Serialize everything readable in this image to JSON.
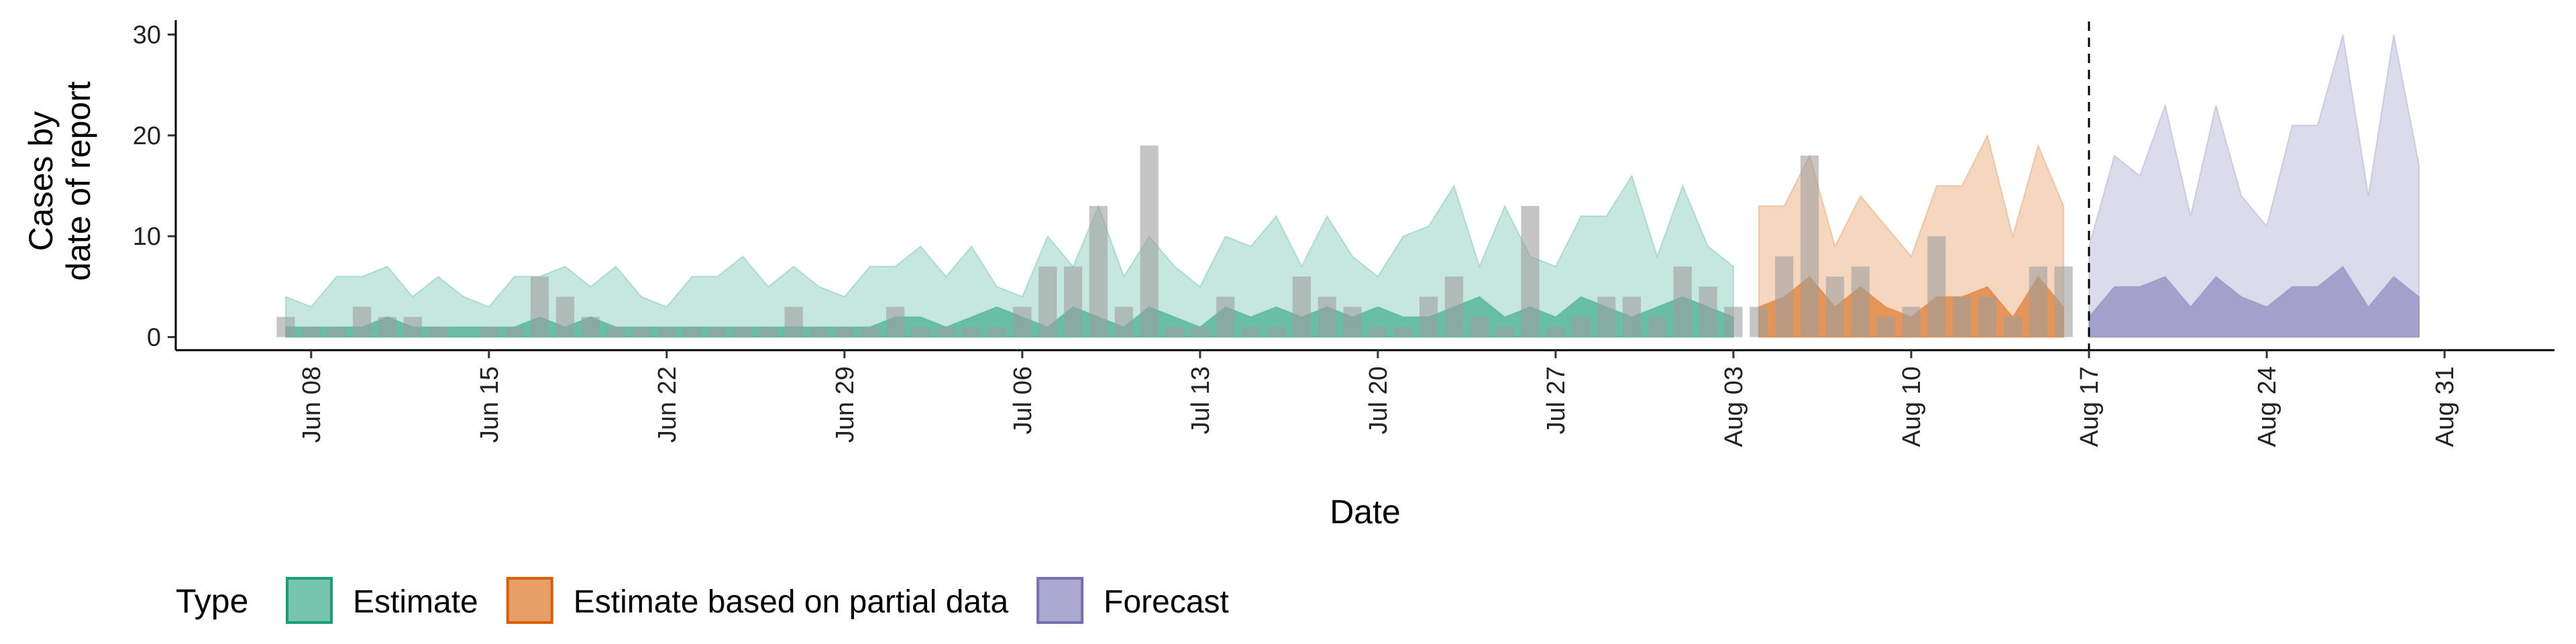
{
  "chart_data": {
    "type": "ribbon",
    "x_label": "Date",
    "y_label": [
      "Cases by",
      "date of report"
    ],
    "x": [
      "Jun 07",
      "Jun 08",
      "Jun 09",
      "Jun 10",
      "Jun 11",
      "Jun 12",
      "Jun 13",
      "Jun 14",
      "Jun 15",
      "Jun 16",
      "Jun 17",
      "Jun 18",
      "Jun 19",
      "Jun 20",
      "Jun 21",
      "Jun 22",
      "Jun 23",
      "Jun 24",
      "Jun 25",
      "Jun 26",
      "Jun 27",
      "Jun 28",
      "Jun 29",
      "Jun 30",
      "Jul 01",
      "Jul 02",
      "Jul 03",
      "Jul 04",
      "Jul 05",
      "Jul 06",
      "Jul 07",
      "Jul 08",
      "Jul 09",
      "Jul 10",
      "Jul 11",
      "Jul 12",
      "Jul 13",
      "Jul 14",
      "Jul 15",
      "Jul 16",
      "Jul 17",
      "Jul 18",
      "Jul 19",
      "Jul 20",
      "Jul 21",
      "Jul 22",
      "Jul 23",
      "Jul 24",
      "Jul 25",
      "Jul 26",
      "Jul 27",
      "Jul 28",
      "Jul 29",
      "Jul 30",
      "Jul 31",
      "Aug 01",
      "Aug 02",
      "Aug 03",
      "Aug 04",
      "Aug 05",
      "Aug 06",
      "Aug 07",
      "Aug 08",
      "Aug 09",
      "Aug 10",
      "Aug 11",
      "Aug 12",
      "Aug 13",
      "Aug 14",
      "Aug 15",
      "Aug 16",
      "Aug 17",
      "Aug 18",
      "Aug 19",
      "Aug 20",
      "Aug 21",
      "Aug 22",
      "Aug 23",
      "Aug 24",
      "Aug 25",
      "Aug 26",
      "Aug 27",
      "Aug 28",
      "Aug 29",
      "Aug 30",
      "Aug 31"
    ],
    "xticks": [
      "Jun 08",
      "Jun 15",
      "Jun 22",
      "Jun 29",
      "Jul 06",
      "Jul 13",
      "Jul 20",
      "Jul 27",
      "Aug 03",
      "Aug 10",
      "Aug 17",
      "Aug 24",
      "Aug 31"
    ],
    "ylim": [
      -1.3,
      31.3
    ],
    "yticks": [
      0,
      10,
      20,
      30
    ],
    "vline": "Aug 17",
    "legend_title": "Type",
    "bars": {
      "color": "#9e9e9e",
      "x": [
        "Jun 07",
        "Jun 08",
        "Jun 09",
        "Jun 10",
        "Jun 11",
        "Jun 12",
        "Jun 13",
        "Jun 14",
        "Jun 15",
        "Jun 16",
        "Jun 17",
        "Jun 18",
        "Jun 19",
        "Jun 20",
        "Jun 21",
        "Jun 22",
        "Jun 23",
        "Jun 24",
        "Jun 25",
        "Jun 26",
        "Jun 27",
        "Jun 28",
        "Jun 29",
        "Jun 30",
        "Jul 01",
        "Jul 02",
        "Jul 03",
        "Jul 04",
        "Jul 05",
        "Jul 06",
        "Jul 07",
        "Jul 08",
        "Jul 09",
        "Jul 10",
        "Jul 11",
        "Jul 12",
        "Jul 13",
        "Jul 14",
        "Jul 15",
        "Jul 16",
        "Jul 17",
        "Jul 18",
        "Jul 19",
        "Jul 20",
        "Jul 21",
        "Jul 22",
        "Jul 23",
        "Jul 24",
        "Jul 25",
        "Jul 26",
        "Jul 27",
        "Jul 28",
        "Jul 29",
        "Jul 30",
        "Jul 31",
        "Aug 01",
        "Aug 02",
        "Aug 03",
        "Aug 04",
        "Aug 05",
        "Aug 06",
        "Aug 07",
        "Aug 08",
        "Aug 09",
        "Aug 10",
        "Aug 11",
        "Aug 12",
        "Aug 13",
        "Aug 14",
        "Aug 15",
        "Aug 16"
      ],
      "values": [
        2,
        1,
        1,
        3,
        2,
        2,
        1,
        0,
        1,
        1,
        6,
        4,
        2,
        1,
        1,
        1,
        1,
        1,
        1,
        1,
        3,
        1,
        1,
        1,
        3,
        1,
        1,
        1,
        1,
        3,
        7,
        7,
        13,
        3,
        19,
        1,
        1,
        4,
        1,
        1,
        6,
        4,
        3,
        1,
        1,
        4,
        6,
        2,
        1,
        13,
        1,
        2,
        4,
        4,
        2,
        7,
        5,
        3,
        3,
        8,
        18,
        6,
        7,
        2,
        3,
        10,
        4,
        4,
        2,
        7,
        7
      ]
    },
    "series": [
      {
        "name": "Estimate",
        "color": "#1b9e77",
        "x": [
          "Jun 07",
          "Jun 08",
          "Jun 09",
          "Jun 10",
          "Jun 11",
          "Jun 12",
          "Jun 13",
          "Jun 14",
          "Jun 15",
          "Jun 16",
          "Jun 17",
          "Jun 18",
          "Jun 19",
          "Jun 20",
          "Jun 21",
          "Jun 22",
          "Jun 23",
          "Jun 24",
          "Jun 25",
          "Jun 26",
          "Jun 27",
          "Jun 28",
          "Jun 29",
          "Jun 30",
          "Jul 01",
          "Jul 02",
          "Jul 03",
          "Jul 04",
          "Jul 05",
          "Jul 06",
          "Jul 07",
          "Jul 08",
          "Jul 09",
          "Jul 10",
          "Jul 11",
          "Jul 12",
          "Jul 13",
          "Jul 14",
          "Jul 15",
          "Jul 16",
          "Jul 17",
          "Jul 18",
          "Jul 19",
          "Jul 20",
          "Jul 21",
          "Jul 22",
          "Jul 23",
          "Jul 24",
          "Jul 25",
          "Jul 26",
          "Jul 27",
          "Jul 28",
          "Jul 29",
          "Jul 30",
          "Jul 31",
          "Aug 01",
          "Aug 02",
          "Aug 03"
        ],
        "upper": [
          4,
          3,
          6,
          6,
          7,
          4,
          6,
          4,
          3,
          6,
          6,
          7,
          5,
          7,
          4,
          3,
          6,
          6,
          8,
          5,
          7,
          5,
          4,
          7,
          7,
          9,
          6,
          9,
          5,
          4,
          10,
          7,
          13,
          6,
          10,
          7,
          5,
          10,
          9,
          12,
          7,
          12,
          8,
          6,
          10,
          11,
          15,
          7,
          13,
          8,
          7,
          12,
          12,
          16,
          8,
          15,
          9,
          7
        ],
        "values": [
          1,
          1,
          1,
          1,
          2,
          1,
          1,
          1,
          1,
          1,
          2,
          1,
          2,
          1,
          1,
          1,
          1,
          1,
          1,
          1,
          1,
          1,
          1,
          1,
          2,
          2,
          1,
          2,
          3,
          2,
          1,
          3,
          2,
          1,
          3,
          2,
          1,
          3,
          2,
          3,
          2,
          3,
          2,
          3,
          2,
          2,
          3,
          4,
          2,
          3,
          2,
          4,
          3,
          2,
          3,
          4,
          3,
          2
        ]
      },
      {
        "name": "Estimate based on partial data",
        "color": "#d95f02",
        "x": [
          "Aug 04",
          "Aug 05",
          "Aug 06",
          "Aug 07",
          "Aug 08",
          "Aug 09",
          "Aug 10",
          "Aug 11",
          "Aug 12",
          "Aug 13",
          "Aug 14",
          "Aug 15",
          "Aug 16"
        ],
        "upper": [
          13,
          13,
          18,
          9,
          14,
          11,
          8,
          15,
          15,
          20,
          10,
          19,
          13
        ],
        "values": [
          3,
          4,
          6,
          3,
          5,
          3,
          2,
          4,
          4,
          5,
          2,
          6,
          3
        ]
      },
      {
        "name": "Forecast",
        "color": "#7570b3",
        "x": [
          "Aug 17",
          "Aug 18",
          "Aug 19",
          "Aug 20",
          "Aug 21",
          "Aug 22",
          "Aug 23",
          "Aug 24",
          "Aug 25",
          "Aug 26",
          "Aug 27",
          "Aug 28",
          "Aug 29",
          "Aug 30"
        ],
        "upper": [
          9,
          18,
          16,
          23,
          12,
          23,
          14,
          11,
          21,
          21,
          30,
          14,
          30,
          17
        ],
        "values": [
          2,
          5,
          5,
          6,
          3,
          6,
          4,
          3,
          5,
          5,
          7,
          3,
          6,
          4
        ]
      }
    ]
  }
}
